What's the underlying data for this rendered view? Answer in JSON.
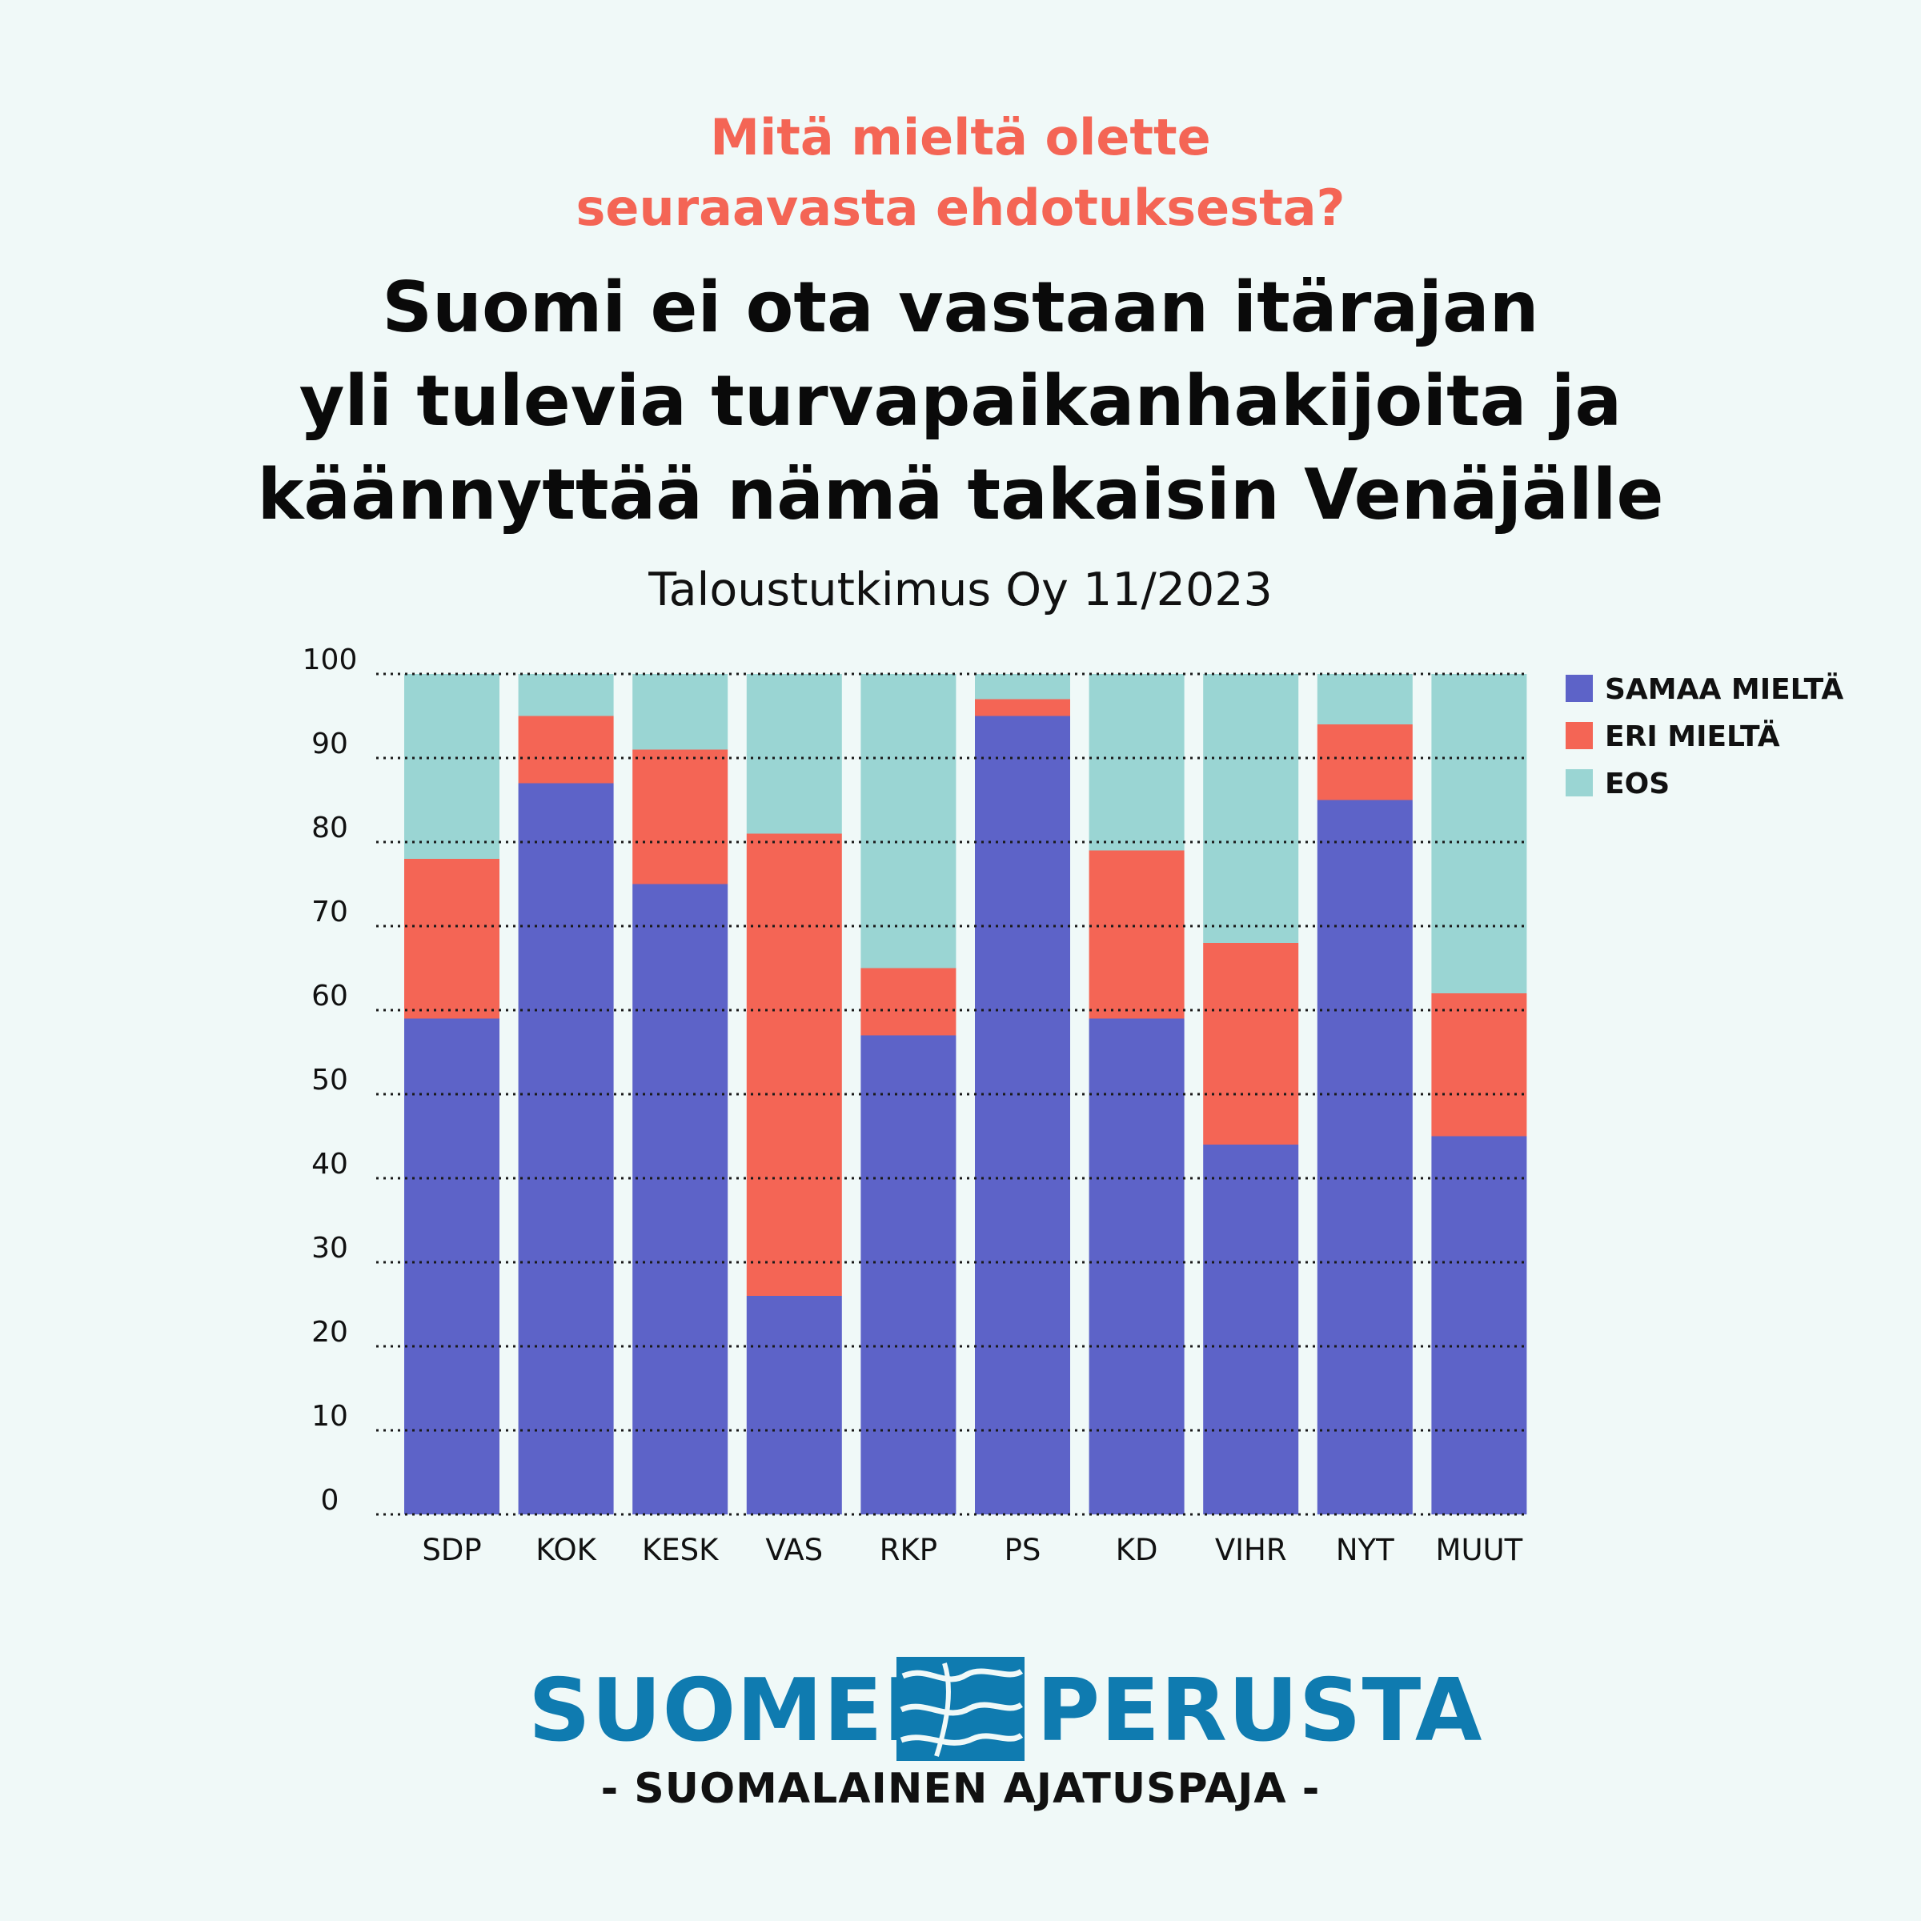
{
  "question": "Mitä mieltä olette\nseuraavasta ehdotuksesta?",
  "source": "Taloustutkimus Oy 11/2023",
  "colors": {
    "samaa": "#5d63c8",
    "eri": "#f46555",
    "eos": "#9ad5d3",
    "question": "#f46555",
    "brand": "#0f7bb0",
    "background": "#f0f9f8"
  },
  "brand": {
    "left": "SUOMEN",
    "right": "PERUSTA",
    "tagline": "- SUOMALAINEN AJATUSPAJA -",
    "logo_icon": "wave-logo-icon"
  },
  "chart_data": {
    "type": "bar",
    "stacked": true,
    "title": "Suomi ei ota vastaan itärajan\nyli tulevia turvapaikanhakijoita ja\nkäännyttää nämä takaisin Venäjälle",
    "categories": [
      "SDP",
      "KOK",
      "KESK",
      "VAS",
      "RKP",
      "PS",
      "KD",
      "VIHR",
      "NYT",
      "MUUT"
    ],
    "series": [
      {
        "name": "SAMAA MIELTÄ",
        "values": [
          59,
          87,
          75,
          26,
          57,
          95,
          59,
          44,
          85,
          45
        ]
      },
      {
        "name": "ERI MIELTÄ",
        "values": [
          19,
          8,
          16,
          55,
          8,
          2,
          20,
          24,
          9,
          17
        ]
      },
      {
        "name": "EOS",
        "values": [
          22,
          5,
          9,
          19,
          35,
          3,
          21,
          32,
          6,
          38
        ]
      }
    ],
    "ylim": [
      0,
      100
    ],
    "yticks": [
      0,
      10,
      20,
      30,
      40,
      50,
      60,
      70,
      80,
      90,
      100
    ],
    "xlabel": "",
    "ylabel": "",
    "grid": "dotted horizontal",
    "legend": "top-right"
  }
}
